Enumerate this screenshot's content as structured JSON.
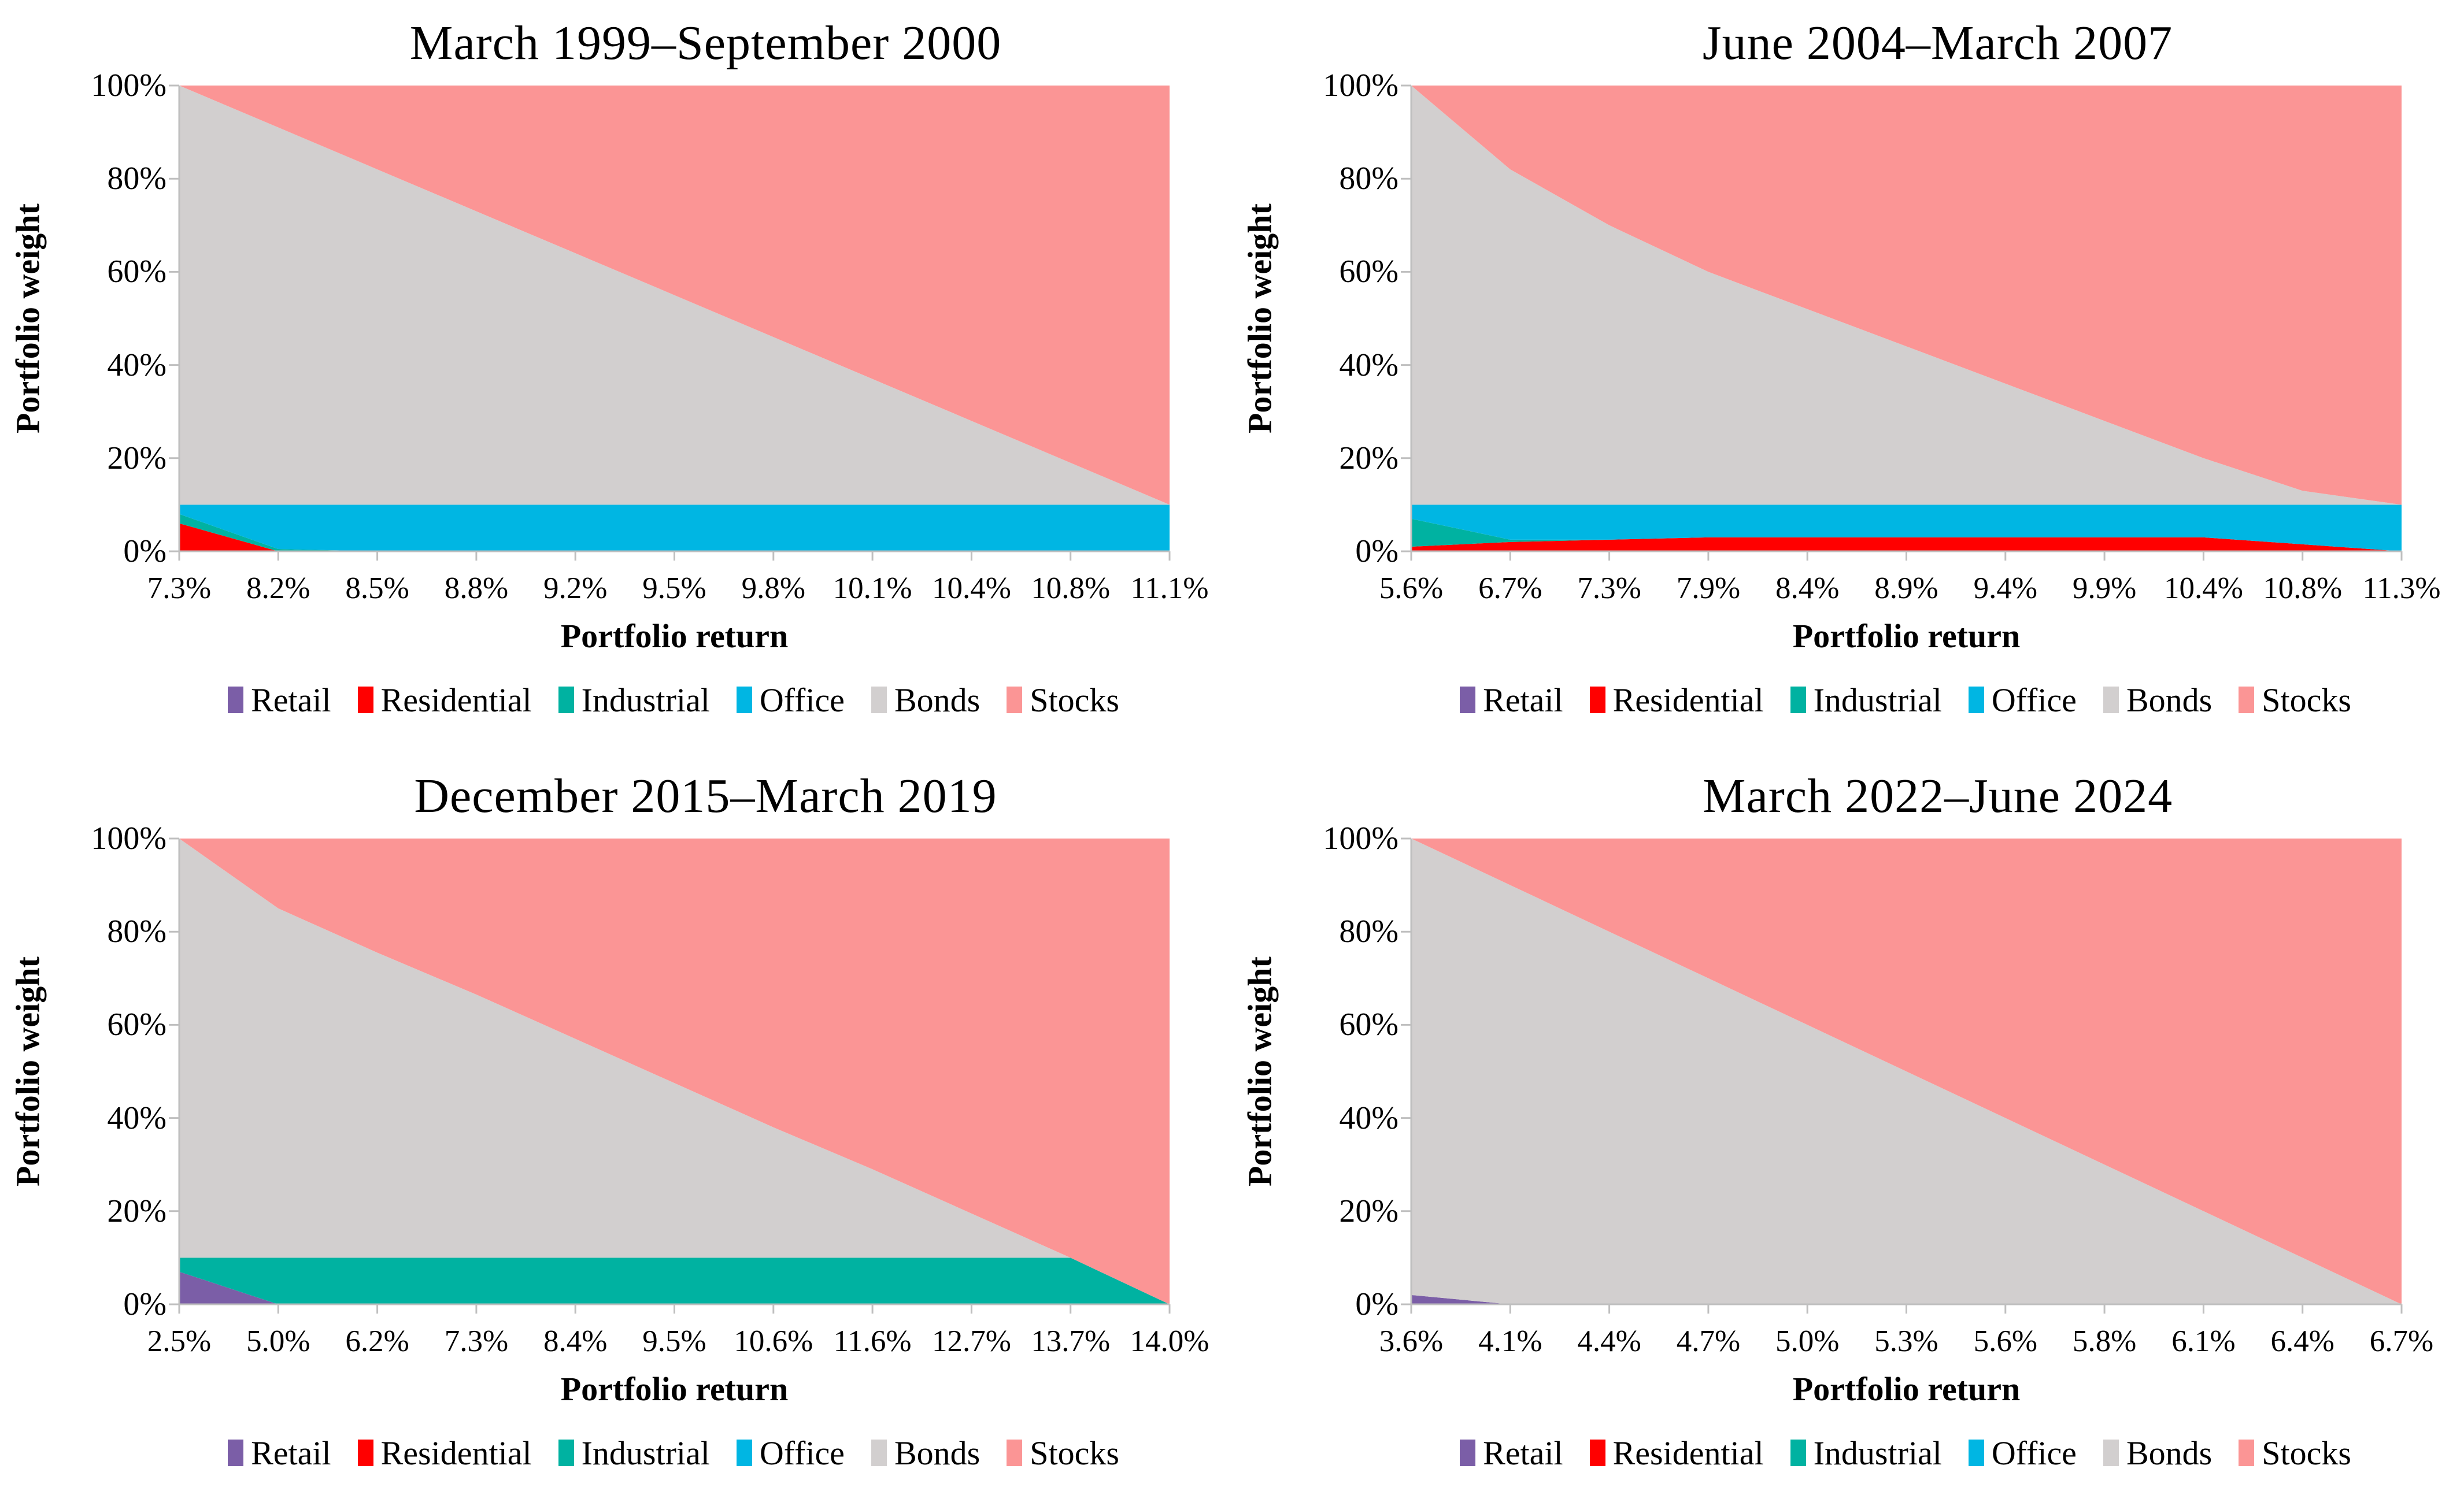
{
  "axis": {
    "y_label": "Portfolio weight",
    "x_label": "Portfolio return",
    "y_ticks": [
      "0%",
      "20%",
      "40%",
      "60%",
      "80%",
      "100%"
    ],
    "y_range": [
      0,
      100
    ],
    "grid": false,
    "axis_line_color": "#bfbfbf"
  },
  "legend": [
    {
      "label": "Retail",
      "color": "#7b5ea7"
    },
    {
      "label": "Residential",
      "color": "#ff0000"
    },
    {
      "label": "Industrial",
      "color": "#00b2a1"
    },
    {
      "label": "Office",
      "color": "#00b6e3"
    },
    {
      "label": "Bonds",
      "color": "#d2cfcf"
    },
    {
      "label": "Stocks",
      "color": "#fb9595"
    }
  ],
  "chart_data": [
    {
      "type": "area",
      "stacked": true,
      "title": "March 1999–September 2000",
      "xlabel": "Portfolio return",
      "ylabel": "Portfolio weight",
      "ylim": [
        0,
        100
      ],
      "legend_position": "bottom",
      "x_tick_labels": [
        "7.3%",
        "8.2%",
        "8.5%",
        "8.8%",
        "9.2%",
        "9.5%",
        "9.8%",
        "10.1%",
        "10.4%",
        "10.8%",
        "11.1%"
      ],
      "series": [
        {
          "name": "Retail",
          "color": "#7b5ea7",
          "values": [
            0,
            0,
            0,
            0,
            0,
            0,
            0,
            0,
            0,
            0,
            0
          ]
        },
        {
          "name": "Residential",
          "color": "#ff0000",
          "values": [
            6,
            0,
            0,
            0,
            0,
            0,
            0,
            0,
            0,
            0,
            0
          ]
        },
        {
          "name": "Industrial",
          "color": "#00b2a1",
          "values": [
            2,
            0.5,
            0,
            0,
            0,
            0,
            0,
            0,
            0,
            0,
            0
          ]
        },
        {
          "name": "Office",
          "color": "#00b6e3",
          "values": [
            2,
            9.5,
            10,
            10,
            10,
            10,
            10,
            10,
            10,
            10,
            10
          ]
        },
        {
          "name": "Bonds",
          "color": "#d2cfcf",
          "values": [
            90,
            81,
            72,
            63,
            54,
            45,
            36,
            27,
            18,
            9,
            0
          ]
        },
        {
          "name": "Stocks",
          "color": "#fb9595",
          "values": [
            0,
            9,
            18,
            27,
            36,
            45,
            54,
            63,
            72,
            81,
            90
          ]
        }
      ]
    },
    {
      "type": "area",
      "stacked": true,
      "title": "June 2004–March 2007",
      "xlabel": "Portfolio return",
      "ylabel": "Portfolio weight",
      "ylim": [
        0,
        100
      ],
      "legend_position": "bottom",
      "x_tick_labels": [
        "5.6%",
        "6.7%",
        "7.3%",
        "7.9%",
        "8.4%",
        "8.9%",
        "9.4%",
        "9.9%",
        "10.4%",
        "10.8%",
        "11.3%"
      ],
      "series": [
        {
          "name": "Retail",
          "color": "#7b5ea7",
          "values": [
            0,
            0,
            0,
            0,
            0,
            0,
            0,
            0,
            0,
            0,
            0
          ]
        },
        {
          "name": "Residential",
          "color": "#ff0000",
          "values": [
            1,
            2,
            2.5,
            3,
            3,
            3,
            3,
            3,
            3,
            1.5,
            0
          ]
        },
        {
          "name": "Industrial",
          "color": "#00b2a1",
          "values": [
            6,
            0.5,
            0,
            0,
            0,
            0,
            0,
            0,
            0,
            0,
            0
          ]
        },
        {
          "name": "Office",
          "color": "#00b6e3",
          "values": [
            3,
            7.5,
            7.5,
            7,
            7,
            7,
            7,
            7,
            7,
            8.5,
            10
          ]
        },
        {
          "name": "Bonds",
          "color": "#d2cfcf",
          "values": [
            90,
            72,
            60,
            50,
            42,
            34,
            26,
            18,
            10,
            3,
            0
          ]
        },
        {
          "name": "Stocks",
          "color": "#fb9595",
          "values": [
            0,
            18,
            30,
            40,
            48,
            56,
            64,
            72,
            80,
            87,
            90
          ]
        }
      ]
    },
    {
      "type": "area",
      "stacked": true,
      "title": "December 2015–March 2019",
      "xlabel": "Portfolio return",
      "ylabel": "Portfolio weight",
      "ylim": [
        0,
        100
      ],
      "legend_position": "bottom",
      "x_tick_labels": [
        "2.5%",
        "5.0%",
        "6.2%",
        "7.3%",
        "8.4%",
        "9.5%",
        "10.6%",
        "11.6%",
        "12.7%",
        "13.7%",
        "14.0%"
      ],
      "series": [
        {
          "name": "Retail",
          "color": "#7b5ea7",
          "values": [
            7,
            0,
            0,
            0,
            0,
            0,
            0,
            0,
            0,
            0,
            0
          ]
        },
        {
          "name": "Residential",
          "color": "#ff0000",
          "values": [
            0,
            0,
            0,
            0,
            0,
            0,
            0,
            0,
            0,
            0,
            0
          ]
        },
        {
          "name": "Industrial",
          "color": "#00b2a1",
          "values": [
            3,
            10,
            10,
            10,
            10,
            10,
            10,
            10,
            10,
            10,
            0
          ]
        },
        {
          "name": "Office",
          "color": "#00b6e3",
          "values": [
            0,
            0,
            0,
            0,
            0,
            0,
            0,
            0,
            0,
            0,
            0
          ]
        },
        {
          "name": "Bonds",
          "color": "#d2cfcf",
          "values": [
            90,
            75,
            65.5,
            56.5,
            47,
            37.5,
            28,
            19,
            9.5,
            0,
            0
          ]
        },
        {
          "name": "Stocks",
          "color": "#fb9595",
          "values": [
            0,
            15,
            24.5,
            33.5,
            43,
            52.5,
            62,
            71,
            80.5,
            90,
            100
          ]
        }
      ]
    },
    {
      "type": "area",
      "stacked": true,
      "title": "March 2022–June 2024",
      "xlabel": "Portfolio return",
      "ylabel": "Portfolio weight",
      "ylim": [
        0,
        100
      ],
      "legend_position": "bottom",
      "x_tick_labels": [
        "3.6%",
        "4.1%",
        "4.4%",
        "4.7%",
        "5.0%",
        "5.3%",
        "5.6%",
        "5.8%",
        "6.1%",
        "6.4%",
        "6.7%"
      ],
      "series": [
        {
          "name": "Retail",
          "color": "#7b5ea7",
          "values": [
            2,
            0,
            0,
            0,
            0,
            0,
            0,
            0,
            0,
            0,
            0
          ]
        },
        {
          "name": "Residential",
          "color": "#ff0000",
          "values": [
            0,
            0,
            0,
            0,
            0,
            0,
            0,
            0,
            0,
            0,
            0
          ]
        },
        {
          "name": "Industrial",
          "color": "#00b2a1",
          "values": [
            0,
            0,
            0,
            0,
            0,
            0,
            0,
            0,
            0,
            0,
            0
          ]
        },
        {
          "name": "Office",
          "color": "#00b6e3",
          "values": [
            0,
            0,
            0,
            0,
            0,
            0,
            0,
            0,
            0,
            0,
            0
          ]
        },
        {
          "name": "Bonds",
          "color": "#d2cfcf",
          "values": [
            98,
            90,
            80,
            70,
            60,
            50,
            40,
            30,
            20,
            10,
            0
          ]
        },
        {
          "name": "Stocks",
          "color": "#fb9595",
          "values": [
            0,
            10,
            20,
            30,
            40,
            50,
            60,
            70,
            80,
            90,
            100
          ]
        }
      ]
    }
  ]
}
